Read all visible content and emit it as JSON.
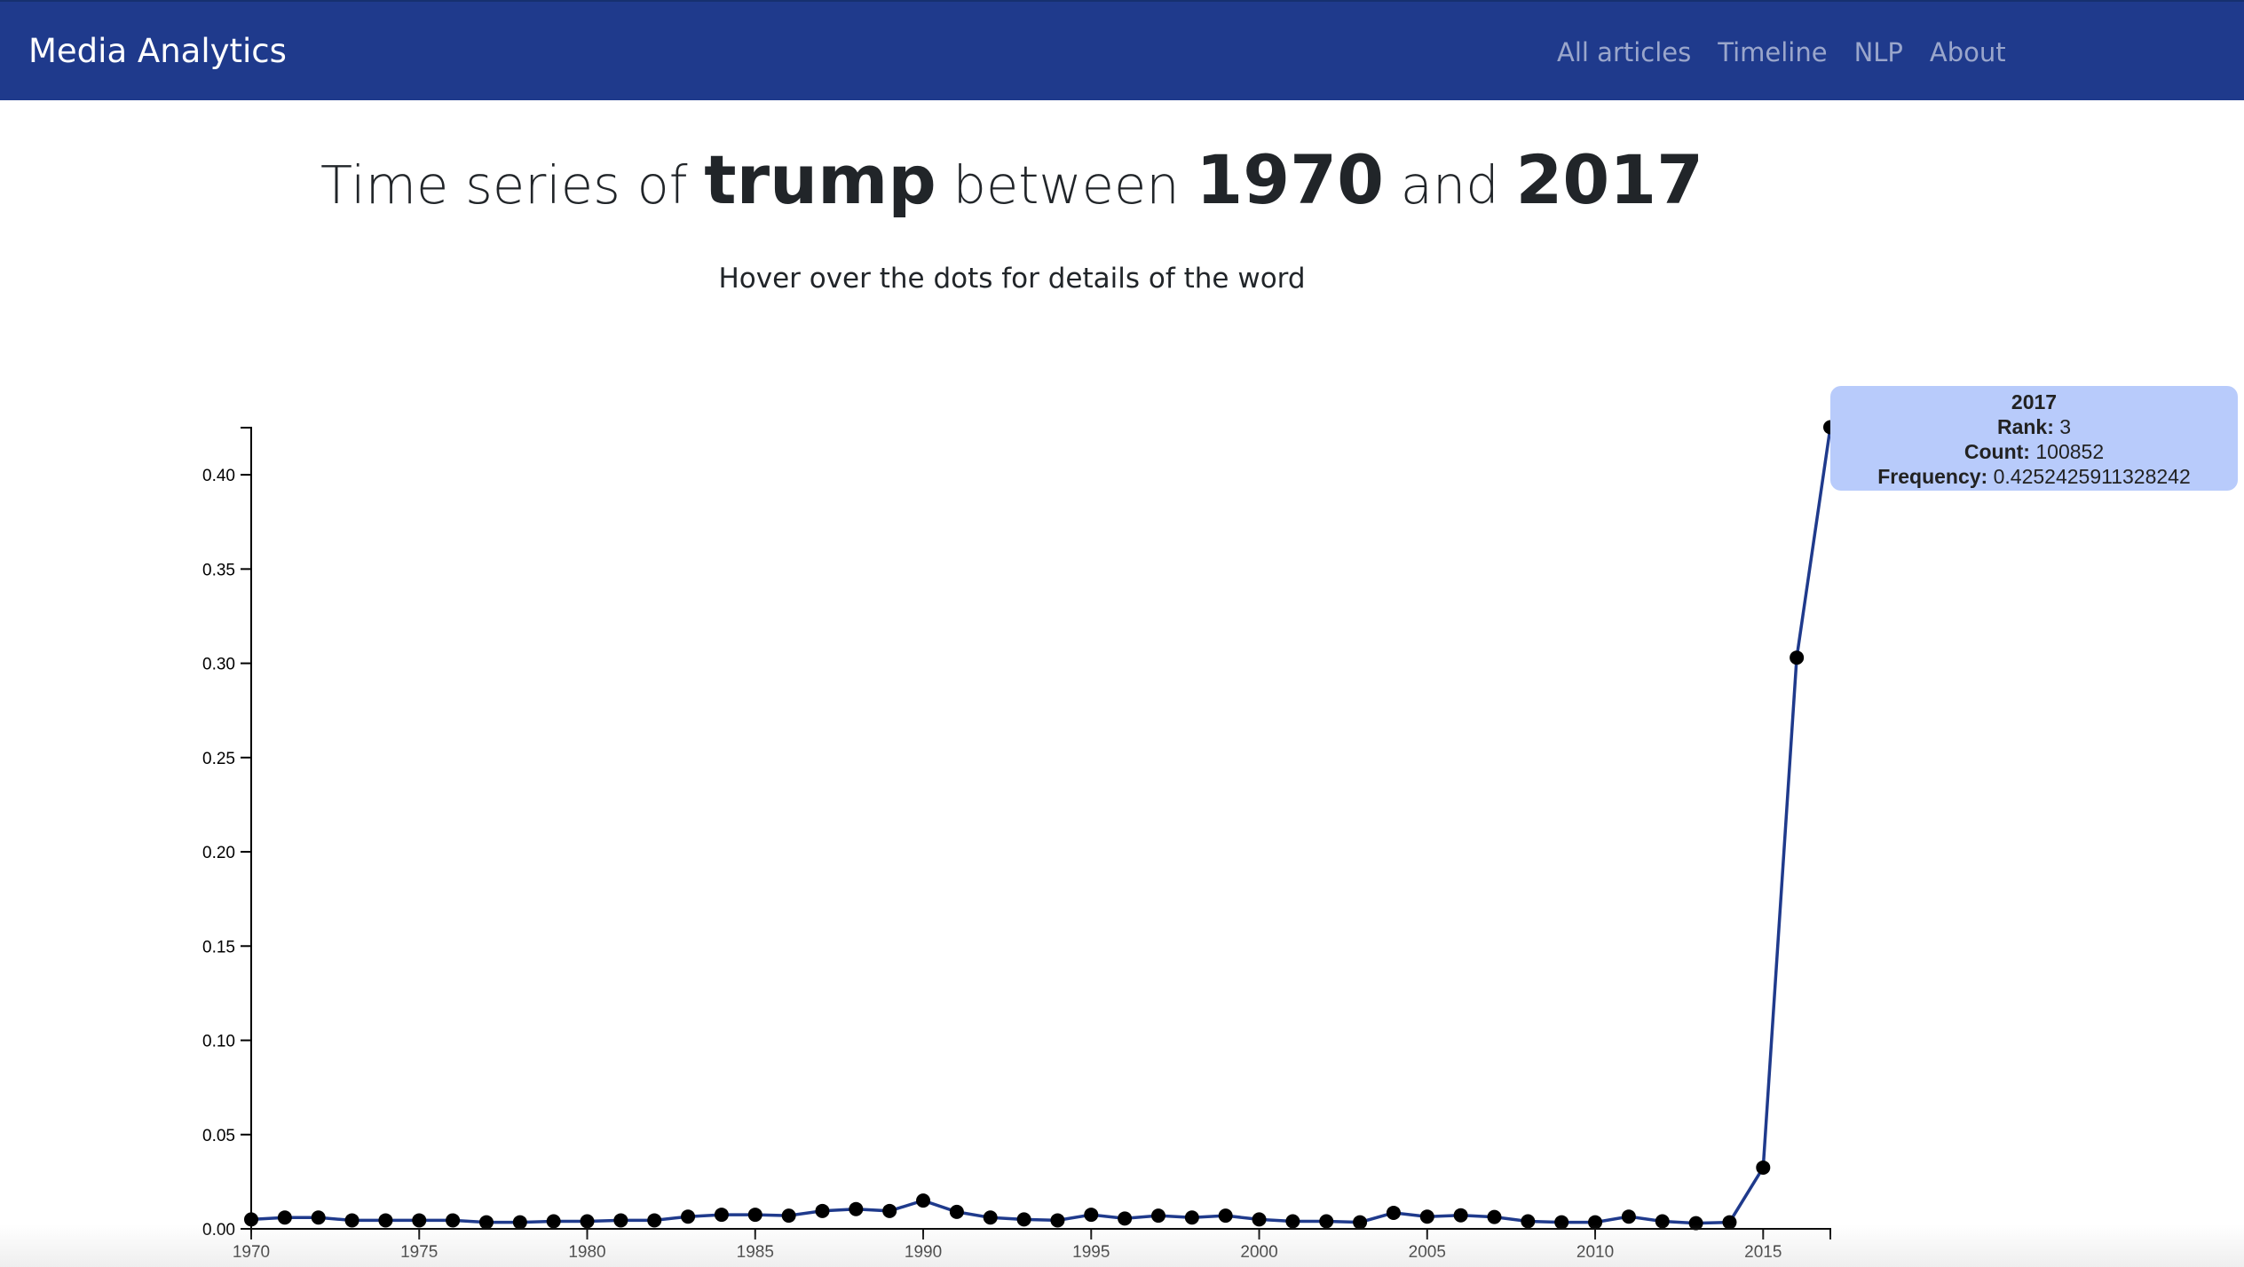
{
  "navbar": {
    "brand": "Media Analytics",
    "links": [
      "All articles",
      "Timeline",
      "NLP",
      "About"
    ]
  },
  "header": {
    "title_prefix": "Time series of",
    "word": "trump",
    "between": "between",
    "start_year": "1970",
    "and": "and",
    "end_year": "2017",
    "subtitle": "Hover over the dots for details of the word"
  },
  "tooltip": {
    "year": "2017",
    "rank_label": "Rank:",
    "rank": "3",
    "count_label": "Count:",
    "count": "100852",
    "frequency_label": "Frequency:",
    "frequency": "0.4252425911328242"
  },
  "colors": {
    "navbar": "#1f3a8c",
    "line": "#1f3a8c",
    "tooltip_bg": "#b8cbfb"
  },
  "chart_data": {
    "type": "line",
    "title": "",
    "xlabel": "",
    "ylabel": "",
    "xlim": [
      1970,
      2017
    ],
    "ylim": [
      0,
      0.425
    ],
    "x_ticks": [
      1970,
      1975,
      1980,
      1985,
      1990,
      1995,
      2000,
      2005,
      2010,
      2015
    ],
    "y_ticks": [
      "0.00",
      "0.05",
      "0.10",
      "0.15",
      "0.20",
      "0.25",
      "0.30",
      "0.35",
      "0.40"
    ],
    "grid": false,
    "x": [
      1970,
      1971,
      1972,
      1973,
      1974,
      1975,
      1976,
      1977,
      1978,
      1979,
      1980,
      1981,
      1982,
      1983,
      1984,
      1985,
      1986,
      1987,
      1988,
      1989,
      1990,
      1991,
      1992,
      1993,
      1994,
      1995,
      1996,
      1997,
      1998,
      1999,
      2000,
      2001,
      2002,
      2003,
      2004,
      2005,
      2006,
      2007,
      2008,
      2009,
      2010,
      2011,
      2012,
      2013,
      2014,
      2015,
      2016,
      2017
    ],
    "y": [
      0.005,
      0.006,
      0.006,
      0.0045,
      0.0045,
      0.0045,
      0.0045,
      0.0035,
      0.0035,
      0.004,
      0.004,
      0.0045,
      0.0045,
      0.0065,
      0.0075,
      0.0075,
      0.007,
      0.0095,
      0.0105,
      0.0095,
      0.015,
      0.009,
      0.006,
      0.005,
      0.0045,
      0.0075,
      0.0055,
      0.007,
      0.006,
      0.007,
      0.005,
      0.004,
      0.004,
      0.0035,
      0.0085,
      0.0065,
      0.0072,
      0.0063,
      0.004,
      0.0035,
      0.0035,
      0.0065,
      0.004,
      0.003,
      0.0035,
      0.0325,
      0.303,
      0.4252425911328242
    ]
  }
}
